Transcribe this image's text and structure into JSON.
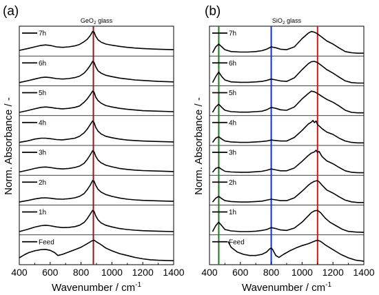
{
  "figure": {
    "ylabel": "Norm. Absorbance / -",
    "xlabel_main": "Wavenumber / cm",
    "xlabel_sup": "-1"
  },
  "chart_data": [
    {
      "type": "line",
      "panel_label": "(a)",
      "title_pre": "GeO",
      "title_sub": "2",
      "title_post": " glass",
      "xlim": [
        400,
        1400
      ],
      "xticks": [
        "400",
        "600",
        "800",
        "1000",
        "1200",
        "1400"
      ],
      "ylabel": "Norm. Absorbance / -",
      "markers": [
        {
          "x": 880,
          "color": "#8b1a1a"
        }
      ],
      "series": [
        {
          "name": "7h",
          "x": [
            400,
            450,
            500,
            540,
            570,
            600,
            640,
            680,
            720,
            760,
            790,
            820,
            840,
            860,
            875,
            885,
            895,
            910,
            930,
            960,
            1000,
            1050,
            1100,
            1150,
            1200,
            1300,
            1400
          ],
          "y": [
            0.15,
            0.22,
            0.3,
            0.36,
            0.38,
            0.36,
            0.3,
            0.28,
            0.3,
            0.34,
            0.4,
            0.52,
            0.62,
            0.78,
            0.95,
            0.92,
            0.75,
            0.6,
            0.5,
            0.42,
            0.37,
            0.32,
            0.28,
            0.25,
            0.23,
            0.2,
            0.18
          ]
        },
        {
          "name": "6h",
          "x": [
            400,
            450,
            500,
            540,
            570,
            600,
            640,
            680,
            720,
            760,
            790,
            820,
            840,
            860,
            875,
            885,
            895,
            910,
            930,
            960,
            1000,
            1050,
            1100,
            1150,
            1200,
            1300,
            1400
          ],
          "y": [
            0.05,
            0.12,
            0.2,
            0.26,
            0.28,
            0.26,
            0.22,
            0.2,
            0.22,
            0.26,
            0.32,
            0.45,
            0.6,
            0.78,
            0.95,
            0.9,
            0.72,
            0.55,
            0.45,
            0.36,
            0.3,
            0.24,
            0.2,
            0.16,
            0.14,
            0.1,
            0.08
          ]
        },
        {
          "name": "5h",
          "x": [
            400,
            450,
            500,
            540,
            570,
            600,
            640,
            680,
            720,
            760,
            790,
            820,
            840,
            860,
            875,
            885,
            895,
            910,
            930,
            960,
            1000,
            1050,
            1100,
            1150,
            1200,
            1300,
            1400
          ],
          "y": [
            0.05,
            0.12,
            0.2,
            0.26,
            0.28,
            0.26,
            0.22,
            0.2,
            0.22,
            0.26,
            0.32,
            0.48,
            0.62,
            0.8,
            0.95,
            0.9,
            0.7,
            0.55,
            0.44,
            0.34,
            0.28,
            0.22,
            0.18,
            0.15,
            0.12,
            0.1,
            0.08
          ]
        },
        {
          "name": "4h",
          "x": [
            400,
            450,
            500,
            540,
            570,
            600,
            640,
            680,
            720,
            760,
            790,
            820,
            840,
            860,
            875,
            885,
            895,
            910,
            930,
            960,
            1000,
            1050,
            1100,
            1150,
            1200,
            1300,
            1400
          ],
          "y": [
            0.04,
            0.1,
            0.18,
            0.22,
            0.22,
            0.2,
            0.16,
            0.15,
            0.18,
            0.22,
            0.3,
            0.45,
            0.6,
            0.8,
            0.95,
            0.88,
            0.68,
            0.52,
            0.4,
            0.3,
            0.24,
            0.18,
            0.14,
            0.12,
            0.1,
            0.08,
            0.06
          ]
        },
        {
          "name": "3h",
          "x": [
            400,
            450,
            500,
            540,
            570,
            600,
            640,
            680,
            720,
            760,
            790,
            820,
            840,
            860,
            875,
            885,
            895,
            910,
            930,
            960,
            1000,
            1050,
            1100,
            1150,
            1200,
            1300,
            1400
          ],
          "y": [
            0.05,
            0.12,
            0.2,
            0.25,
            0.26,
            0.24,
            0.2,
            0.18,
            0.2,
            0.24,
            0.3,
            0.42,
            0.58,
            0.78,
            0.95,
            0.9,
            0.72,
            0.56,
            0.44,
            0.34,
            0.27,
            0.2,
            0.16,
            0.13,
            0.11,
            0.09,
            0.07
          ]
        },
        {
          "name": "2h",
          "x": [
            400,
            450,
            500,
            540,
            570,
            600,
            640,
            680,
            720,
            760,
            790,
            820,
            840,
            860,
            875,
            885,
            895,
            910,
            930,
            960,
            1000,
            1050,
            1100,
            1150,
            1200,
            1300,
            1400
          ],
          "y": [
            0.04,
            0.1,
            0.17,
            0.21,
            0.22,
            0.2,
            0.17,
            0.16,
            0.18,
            0.22,
            0.28,
            0.4,
            0.56,
            0.76,
            0.95,
            0.92,
            0.75,
            0.58,
            0.46,
            0.36,
            0.28,
            0.21,
            0.16,
            0.13,
            0.11,
            0.09,
            0.07
          ]
        },
        {
          "name": "1h",
          "x": [
            400,
            450,
            500,
            540,
            570,
            600,
            640,
            680,
            720,
            760,
            790,
            820,
            840,
            860,
            875,
            885,
            895,
            910,
            930,
            960,
            1000,
            1050,
            1100,
            1150,
            1200,
            1300,
            1400
          ],
          "y": [
            0.05,
            0.14,
            0.24,
            0.3,
            0.32,
            0.3,
            0.25,
            0.22,
            0.23,
            0.26,
            0.32,
            0.44,
            0.6,
            0.8,
            0.95,
            0.9,
            0.72,
            0.55,
            0.42,
            0.32,
            0.25,
            0.18,
            0.14,
            0.11,
            0.09,
            0.07,
            0.05
          ]
        },
        {
          "name": "Feed",
          "x": [
            400,
            430,
            460,
            500,
            540,
            570,
            600,
            630,
            650,
            680,
            720,
            760,
            800,
            840,
            870,
            885,
            900,
            930,
            960,
            1000,
            1050,
            1100,
            1150,
            1200,
            1250,
            1300,
            1400
          ],
          "y": [
            0.2,
            0.32,
            0.42,
            0.5,
            0.55,
            0.56,
            0.52,
            0.42,
            0.3,
            0.35,
            0.45,
            0.55,
            0.65,
            0.8,
            0.92,
            0.95,
            0.88,
            0.76,
            0.62,
            0.5,
            0.38,
            0.3,
            0.22,
            0.16,
            0.12,
            0.1,
            0.08
          ]
        }
      ]
    },
    {
      "type": "line",
      "panel_label": "(b)",
      "title_pre": "SiO",
      "title_sub": "2",
      "title_post": " glass",
      "xlim": [
        400,
        1400
      ],
      "xticks": [
        "400",
        "600",
        "800",
        "1000",
        "1200",
        "1400"
      ],
      "ylabel": "Norm. Absorbance / -",
      "markers": [
        {
          "x": 460,
          "color": "#1f7a1f"
        },
        {
          "x": 800,
          "color": "#1030e0"
        },
        {
          "x": 1100,
          "color": "#e01010"
        }
      ],
      "series": [
        {
          "name": "7h",
          "x": [
            420,
            440,
            460,
            480,
            500,
            540,
            600,
            650,
            700,
            740,
            770,
            800,
            830,
            860,
            900,
            950,
            1000,
            1040,
            1060,
            1080,
            1100,
            1130,
            1160,
            1200,
            1240,
            1280,
            1320,
            1360,
            1400
          ],
          "y": [
            0.05,
            0.3,
            0.42,
            0.3,
            0.18,
            0.1,
            0.08,
            0.08,
            0.1,
            0.14,
            0.2,
            0.3,
            0.26,
            0.2,
            0.18,
            0.3,
            0.65,
            0.88,
            0.95,
            0.92,
            0.85,
            0.7,
            0.55,
            0.42,
            0.25,
            0.1,
            0.05,
            0.03,
            0.03
          ]
        },
        {
          "name": "6h",
          "x": [
            420,
            440,
            460,
            480,
            500,
            540,
            600,
            650,
            700,
            740,
            770,
            800,
            830,
            860,
            900,
            950,
            1000,
            1040,
            1060,
            1080,
            1100,
            1130,
            1160,
            1200,
            1240,
            1280,
            1320,
            1360,
            1400
          ],
          "y": [
            0.05,
            0.3,
            0.5,
            0.3,
            0.16,
            0.08,
            0.06,
            0.06,
            0.08,
            0.1,
            0.14,
            0.2,
            0.16,
            0.12,
            0.1,
            0.25,
            0.6,
            0.85,
            0.93,
            0.95,
            0.9,
            0.75,
            0.6,
            0.45,
            0.28,
            0.12,
            0.05,
            0.03,
            0.03
          ]
        },
        {
          "name": "5h",
          "x": [
            420,
            440,
            460,
            480,
            500,
            540,
            600,
            650,
            700,
            740,
            770,
            800,
            830,
            860,
            900,
            950,
            1000,
            1040,
            1060,
            1080,
            1100,
            1130,
            1160,
            1200,
            1240,
            1280,
            1320,
            1360,
            1400
          ],
          "y": [
            0.05,
            0.28,
            0.4,
            0.26,
            0.14,
            0.08,
            0.06,
            0.06,
            0.08,
            0.1,
            0.16,
            0.26,
            0.22,
            0.16,
            0.14,
            0.28,
            0.62,
            0.85,
            0.95,
            0.92,
            0.85,
            0.72,
            0.6,
            0.48,
            0.32,
            0.14,
            0.05,
            0.03,
            0.03
          ]
        },
        {
          "name": "4h",
          "x": [
            420,
            440,
            460,
            480,
            500,
            540,
            600,
            650,
            700,
            740,
            770,
            800,
            830,
            860,
            900,
            950,
            1000,
            1040,
            1060,
            1070,
            1080,
            1090,
            1100,
            1130,
            1160,
            1200,
            1240,
            1280,
            1320,
            1360,
            1400
          ],
          "y": [
            0.04,
            0.22,
            0.28,
            0.18,
            0.1,
            0.06,
            0.04,
            0.04,
            0.06,
            0.08,
            0.1,
            0.14,
            0.12,
            0.1,
            0.1,
            0.25,
            0.55,
            0.82,
            0.9,
            0.97,
            0.88,
            0.95,
            0.8,
            0.62,
            0.48,
            0.38,
            0.22,
            0.1,
            0.04,
            0.02,
            0.02
          ]
        },
        {
          "name": "3h",
          "x": [
            420,
            440,
            460,
            480,
            500,
            540,
            600,
            650,
            700,
            740,
            770,
            800,
            830,
            860,
            900,
            950,
            1000,
            1040,
            1060,
            1080,
            1090,
            1100,
            1110,
            1130,
            1160,
            1200,
            1240,
            1280,
            1320,
            1360,
            1400
          ],
          "y": [
            0.04,
            0.2,
            0.25,
            0.16,
            0.08,
            0.05,
            0.04,
            0.04,
            0.06,
            0.08,
            0.12,
            0.18,
            0.14,
            0.1,
            0.1,
            0.22,
            0.5,
            0.75,
            0.85,
            0.9,
            0.97,
            0.88,
            0.92,
            0.7,
            0.52,
            0.4,
            0.24,
            0.1,
            0.04,
            0.02,
            0.02
          ]
        },
        {
          "name": "2h",
          "x": [
            420,
            440,
            460,
            480,
            500,
            540,
            600,
            650,
            700,
            740,
            770,
            800,
            830,
            860,
            900,
            950,
            1000,
            1040,
            1060,
            1080,
            1100,
            1110,
            1130,
            1160,
            1200,
            1240,
            1280,
            1320,
            1360,
            1400
          ],
          "y": [
            0.04,
            0.2,
            0.28,
            0.18,
            0.1,
            0.06,
            0.04,
            0.04,
            0.06,
            0.08,
            0.12,
            0.16,
            0.13,
            0.1,
            0.1,
            0.22,
            0.5,
            0.75,
            0.85,
            0.92,
            0.95,
            0.9,
            0.75,
            0.55,
            0.42,
            0.26,
            0.12,
            0.05,
            0.02,
            0.02
          ]
        },
        {
          "name": "1h",
          "x": [
            420,
            440,
            460,
            480,
            500,
            540,
            600,
            650,
            700,
            740,
            770,
            800,
            830,
            860,
            900,
            950,
            1000,
            1040,
            1060,
            1080,
            1100,
            1120,
            1150,
            1180,
            1220,
            1260,
            1300,
            1350,
            1400
          ],
          "y": [
            0.05,
            0.3,
            0.45,
            0.3,
            0.14,
            0.08,
            0.05,
            0.05,
            0.07,
            0.1,
            0.14,
            0.22,
            0.18,
            0.12,
            0.1,
            0.2,
            0.45,
            0.72,
            0.85,
            0.93,
            0.95,
            0.85,
            0.62,
            0.45,
            0.3,
            0.15,
            0.06,
            0.03,
            0.02
          ]
        },
        {
          "name": "Feed",
          "x": [
            520,
            540,
            580,
            620,
            660,
            700,
            740,
            770,
            790,
            800,
            810,
            830,
            850,
            880,
            920,
            960,
            1000,
            1040,
            1070,
            1090,
            1100,
            1120,
            1150,
            1200,
            1250,
            1300,
            1350,
            1400
          ],
          "y": [
            0.9,
            0.65,
            0.45,
            0.35,
            0.3,
            0.3,
            0.35,
            0.45,
            0.58,
            0.62,
            0.55,
            0.3,
            0.22,
            0.35,
            0.5,
            0.62,
            0.72,
            0.8,
            0.88,
            0.93,
            0.95,
            0.9,
            0.75,
            0.55,
            0.35,
            0.2,
            0.1,
            0.06
          ]
        }
      ]
    }
  ]
}
